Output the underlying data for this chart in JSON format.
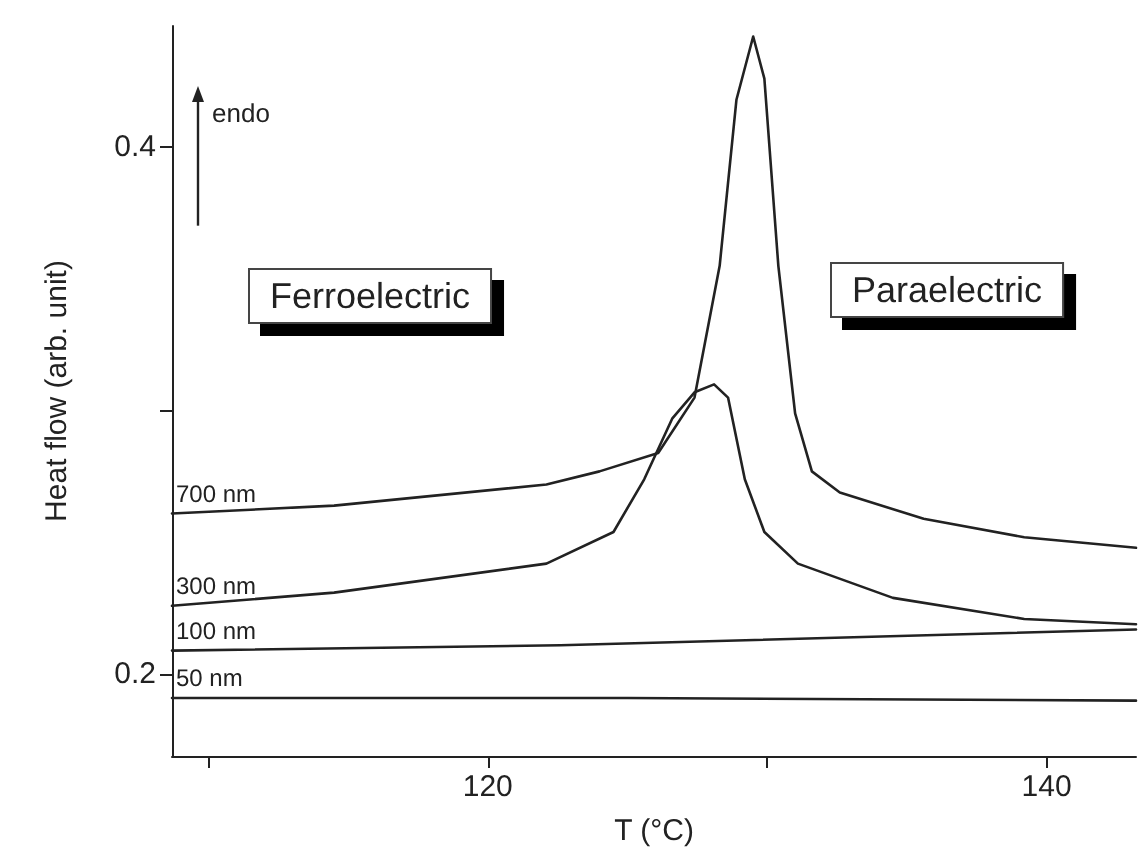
{
  "chart_data": {
    "type": "line",
    "xlabel": "T (°C)",
    "ylabel": "Heat flow (arb. unit)",
    "xlim": [
      108.7,
      143.2
    ],
    "ylim": [
      0.169,
      0.446
    ],
    "xticks": [
      {
        "value": 110,
        "label": null
      },
      120,
      {
        "value": 130,
        "label": null
      },
      140
    ],
    "yticks": [
      0.2,
      {
        "value": 0.3,
        "label": null
      },
      0.4
    ],
    "grid": false,
    "legend": false,
    "marker": "none",
    "line_style": "solid",
    "annotations": [
      "endo",
      "Ferroelectric",
      "Paraelectric"
    ],
    "series": [
      {
        "name": "700 nm",
        "color": "#222222",
        "x": [
          108.7,
          114.5,
          122.1,
          124,
          126.1,
          127.4,
          128.3,
          128.9,
          129.5,
          129.9,
          130.4,
          131,
          131.6,
          132.6,
          135.6,
          139.2,
          143.2
        ],
        "values": [
          0.261,
          0.264,
          0.272,
          0.277,
          0.284,
          0.305,
          0.355,
          0.418,
          0.442,
          0.426,
          0.355,
          0.299,
          0.277,
          0.269,
          0.259,
          0.252,
          0.248
        ]
      },
      {
        "name": "300 nm",
        "color": "#222222",
        "x": [
          108.7,
          114.5,
          122.1,
          124.5,
          125.6,
          126.6,
          127.4,
          128.1,
          128.6,
          129.2,
          129.9,
          131.1,
          134.5,
          139.2,
          143.2
        ],
        "values": [
          0.226,
          0.231,
          0.242,
          0.254,
          0.274,
          0.297,
          0.307,
          0.31,
          0.305,
          0.274,
          0.254,
          0.242,
          0.229,
          0.221,
          0.219
        ]
      },
      {
        "name": "100 nm",
        "color": "#222222",
        "x": [
          108.7,
          122.6,
          143.2
        ],
        "values": [
          0.209,
          0.211,
          0.217
        ]
      },
      {
        "name": "50 nm",
        "color": "#222222",
        "x": [
          108.7,
          125,
          143.2
        ],
        "values": [
          0.191,
          0.191,
          0.19
        ]
      }
    ]
  }
}
